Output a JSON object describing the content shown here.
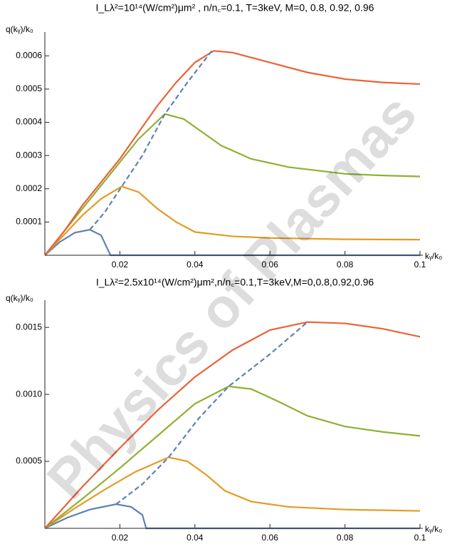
{
  "watermark": "Physics of Plasmas",
  "chart_data": [
    {
      "type": "line",
      "title": "I_Lλ²=10¹⁴(W/cm²)μm² , n/n꜀=0.1, T=3keV, M=0, 0.8, 0.92, 0.96",
      "y_label": "q(kᵧ)/k₀",
      "x_label": "kᵧ/k₀",
      "xlim": [
        0,
        0.1
      ],
      "ylim": [
        0,
        0.00065
      ],
      "xticks": [
        0.02,
        0.04,
        0.06,
        0.08,
        0.1
      ],
      "yticks": [
        0.0001,
        0.0002,
        0.0003,
        0.0004,
        0.0005,
        0.0006
      ],
      "series": [
        {
          "color": "#5e81b5",
          "dashed": false,
          "x": [
            0,
            0.004,
            0.008,
            0.012,
            0.015,
            0.0175,
            0.03,
            0.06,
            0.1
          ],
          "values": [
            0,
            4e-05,
            6.8e-05,
            7.7e-05,
            6e-05,
            0,
            0,
            0,
            0
          ]
        },
        {
          "color": "#e19c24",
          "dashed": false,
          "x": [
            0,
            0.005,
            0.01,
            0.015,
            0.0205,
            0.025,
            0.03,
            0.035,
            0.04,
            0.05,
            0.06,
            0.07,
            0.08,
            0.1
          ],
          "values": [
            0,
            6e-05,
            0.00012,
            0.00017,
            0.000207,
            0.00019,
            0.00014,
            0.0001,
            7e-05,
            5.7e-05,
            5.2e-05,
            5e-05,
            4.8e-05,
            4.7e-05
          ]
        },
        {
          "color": "#8fb032",
          "dashed": false,
          "x": [
            0,
            0.005,
            0.01,
            0.015,
            0.02,
            0.025,
            0.032,
            0.037,
            0.042,
            0.047,
            0.055,
            0.065,
            0.08,
            0.09,
            0.1
          ],
          "values": [
            0,
            7e-05,
            0.00014,
            0.00021,
            0.00028,
            0.00035,
            0.000425,
            0.00041,
            0.00037,
            0.00033,
            0.00029,
            0.000265,
            0.000245,
            0.00024,
            0.000237
          ]
        },
        {
          "color": "#eb6235",
          "dashed": false,
          "x": [
            0,
            0.005,
            0.01,
            0.015,
            0.02,
            0.025,
            0.03,
            0.035,
            0.04,
            0.045,
            0.05,
            0.06,
            0.07,
            0.08,
            0.09,
            0.1
          ],
          "values": [
            0,
            7e-05,
            0.00015,
            0.00022,
            0.00029,
            0.00037,
            0.00045,
            0.00052,
            0.00058,
            0.000615,
            0.00061,
            0.00058,
            0.00055,
            0.00053,
            0.00052,
            0.000515
          ]
        },
        {
          "color": "#5e81b5",
          "dashed": true,
          "x": [
            0.012,
            0.016,
            0.0205,
            0.026,
            0.032,
            0.038,
            0.0445
          ],
          "values": [
            7.7e-05,
            0.00013,
            0.000207,
            0.0003,
            0.000425,
            0.00052,
            0.000615
          ]
        }
      ]
    },
    {
      "type": "line",
      "title": "I_Lλ²=2.5x10¹⁴(W/cm²)μm²,n/n꜀=0.1,T=3keV,M=0,0.8,0.92,0.96",
      "y_label": "q(kᵧ)/k₀",
      "x_label": "kᵧ/k₀",
      "xlim": [
        0,
        0.1
      ],
      "ylim": [
        0,
        0.00165
      ],
      "xticks": [
        0.02,
        0.04,
        0.06,
        0.08,
        0.1
      ],
      "yticks": [
        {
          "value": 0.0005,
          "label": "0.0005"
        },
        {
          "value": 0.001,
          "label": "0.0010"
        },
        {
          "value": 0.0015,
          "label": "0.0015"
        }
      ],
      "series": [
        {
          "color": "#5e81b5",
          "dashed": false,
          "x": [
            0,
            0.006,
            0.012,
            0.019,
            0.023,
            0.026,
            0.027,
            0.05,
            0.1
          ],
          "values": [
            0,
            8e-05,
            0.00014,
            0.00018,
            0.00016,
            0.0001,
            0,
            0,
            0
          ]
        },
        {
          "color": "#e19c24",
          "dashed": false,
          "x": [
            0,
            0.008,
            0.016,
            0.024,
            0.033,
            0.038,
            0.043,
            0.048,
            0.055,
            0.065,
            0.08,
            0.1
          ],
          "values": [
            0,
            0.00015,
            0.00029,
            0.00042,
            0.00053,
            0.0005,
            0.0004,
            0.00028,
            0.0002,
            0.00016,
            0.00014,
            0.00013
          ]
        },
        {
          "color": "#8fb032",
          "dashed": false,
          "x": [
            0,
            0.01,
            0.02,
            0.03,
            0.04,
            0.049,
            0.055,
            0.062,
            0.07,
            0.08,
            0.09,
            0.1
          ],
          "values": [
            0,
            0.00022,
            0.00045,
            0.00069,
            0.00093,
            0.00106,
            0.00104,
            0.00095,
            0.00084,
            0.00076,
            0.00072,
            0.00069
          ]
        },
        {
          "color": "#eb6235",
          "dashed": false,
          "x": [
            0,
            0.01,
            0.02,
            0.03,
            0.04,
            0.05,
            0.06,
            0.07,
            0.08,
            0.09,
            0.1
          ],
          "values": [
            0,
            0.00031,
            0.0006,
            0.00088,
            0.00113,
            0.00133,
            0.00148,
            0.00154,
            0.00153,
            0.00149,
            0.00143
          ]
        },
        {
          "color": "#5e81b5",
          "dashed": true,
          "x": [
            0.019,
            0.026,
            0.033,
            0.041,
            0.049,
            0.06,
            0.07
          ],
          "values": [
            0.00018,
            0.00033,
            0.00053,
            0.00082,
            0.00106,
            0.0013,
            0.00154
          ]
        }
      ]
    }
  ]
}
